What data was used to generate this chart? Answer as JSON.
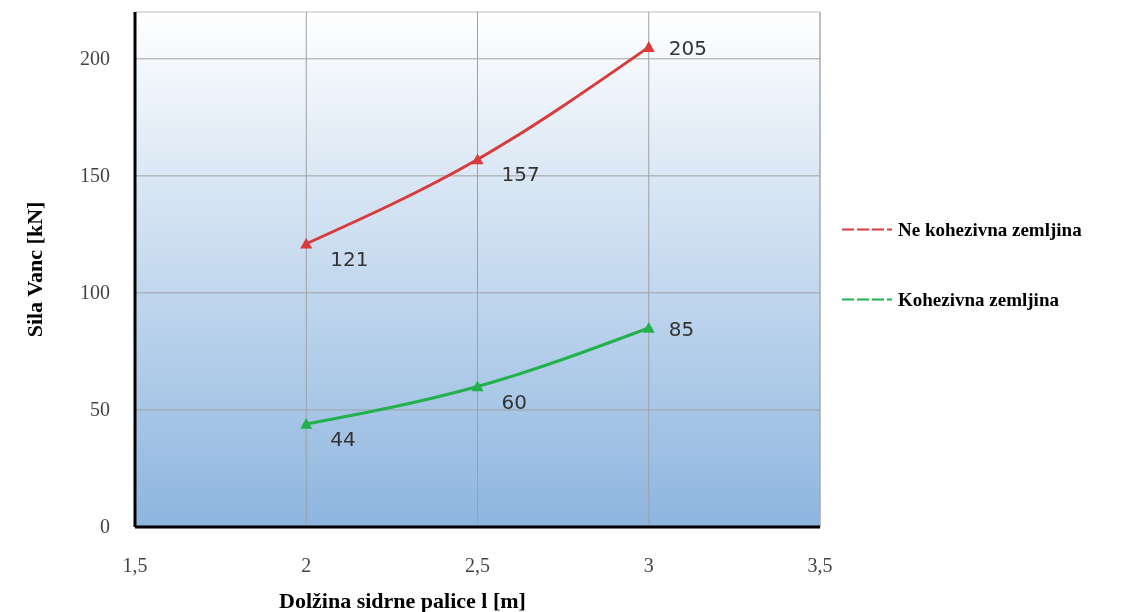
{
  "chart_data": {
    "type": "line",
    "xlabel": "Dolžina sidrne palice l [m]",
    "ylabel": "Sila Vanc [kN]",
    "x": [
      2,
      2.5,
      3
    ],
    "series": [
      {
        "name": "Ne kohezivna zemljina",
        "color": "#d93a3a",
        "values": [
          121,
          157,
          205
        ]
      },
      {
        "name": "Kohezivna zemljina",
        "color": "#22b14c",
        "values": [
          44,
          60,
          85
        ]
      }
    ],
    "xlim": [
      1.5,
      3.5
    ],
    "xticks": [
      {
        "value": 1.5,
        "label": "1,5"
      },
      2,
      {
        "value": 2.5,
        "label": "2,5"
      },
      3,
      {
        "value": 3.5,
        "label": "3,5"
      }
    ],
    "ylim": [
      0,
      220
    ],
    "yticks": [
      0,
      50,
      100,
      150,
      200
    ],
    "grid": true,
    "legend": "right",
    "marker": "triangle",
    "line_style": "solid",
    "data_labels": true
  }
}
